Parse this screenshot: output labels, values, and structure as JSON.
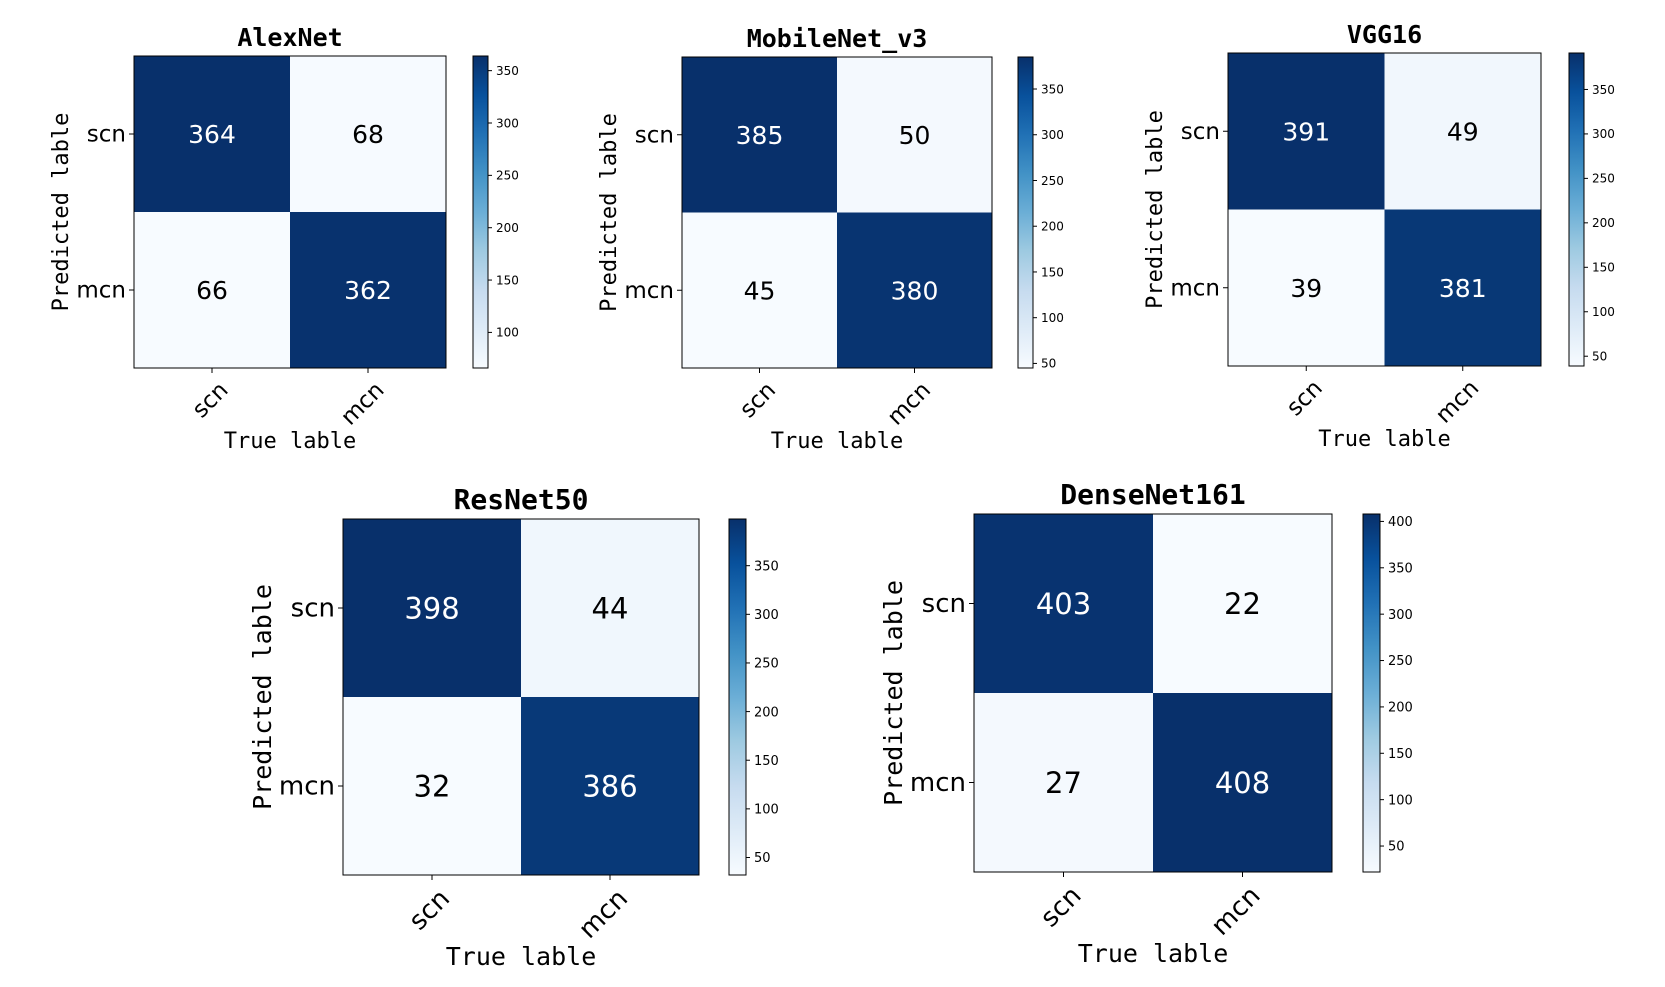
{
  "figure": {
    "colormap": "Blues",
    "color_stops": [
      "#f7fbff",
      "#deebf7",
      "#c6dbef",
      "#9ecae1",
      "#6baed6",
      "#4292c6",
      "#2171b5",
      "#08519c",
      "#08306b"
    ]
  },
  "chart_data": [
    {
      "type": "heatmap",
      "title": "AlexNet",
      "xlabel": "True lable",
      "ylabel": "Predicted lable",
      "x_categories": [
        "scn",
        "mcn"
      ],
      "y_categories": [
        "scn",
        "mcn"
      ],
      "values": [
        [
          364,
          68
        ],
        [
          66,
          362
        ]
      ],
      "colorbar": {
        "range": [
          66,
          364
        ],
        "ticks": [
          100,
          150,
          200,
          250,
          300,
          350
        ]
      }
    },
    {
      "type": "heatmap",
      "title": "MobileNet_v3",
      "xlabel": "True lable",
      "ylabel": "Predicted lable",
      "x_categories": [
        "scn",
        "mcn"
      ],
      "y_categories": [
        "scn",
        "mcn"
      ],
      "values": [
        [
          385,
          50
        ],
        [
          45,
          380
        ]
      ],
      "colorbar": {
        "range": [
          45,
          385
        ],
        "ticks": [
          50,
          100,
          150,
          200,
          250,
          300,
          350
        ]
      }
    },
    {
      "type": "heatmap",
      "title": "VGG16",
      "xlabel": "True lable",
      "ylabel": "Predicted lable",
      "x_categories": [
        "scn",
        "mcn"
      ],
      "y_categories": [
        "scn",
        "mcn"
      ],
      "values": [
        [
          391,
          49
        ],
        [
          39,
          381
        ]
      ],
      "colorbar": {
        "range": [
          39,
          391
        ],
        "ticks": [
          50,
          100,
          150,
          200,
          250,
          300,
          350
        ]
      }
    },
    {
      "type": "heatmap",
      "title": "ResNet50",
      "xlabel": "True lable",
      "ylabel": "Predicted lable",
      "x_categories": [
        "scn",
        "mcn"
      ],
      "y_categories": [
        "scn",
        "mcn"
      ],
      "values": [
        [
          398,
          44
        ],
        [
          32,
          386
        ]
      ],
      "colorbar": {
        "range": [
          32,
          398
        ],
        "ticks": [
          50,
          100,
          150,
          200,
          250,
          300,
          350
        ]
      }
    },
    {
      "type": "heatmap",
      "title": "DenseNet161",
      "xlabel": "True lable",
      "ylabel": "Predicted lable",
      "x_categories": [
        "scn",
        "mcn"
      ],
      "y_categories": [
        "scn",
        "mcn"
      ],
      "values": [
        [
          403,
          22
        ],
        [
          27,
          408
        ]
      ],
      "colorbar": {
        "range": [
          22,
          408
        ],
        "ticks": [
          50,
          100,
          150,
          200,
          250,
          300,
          350,
          400
        ]
      }
    }
  ]
}
